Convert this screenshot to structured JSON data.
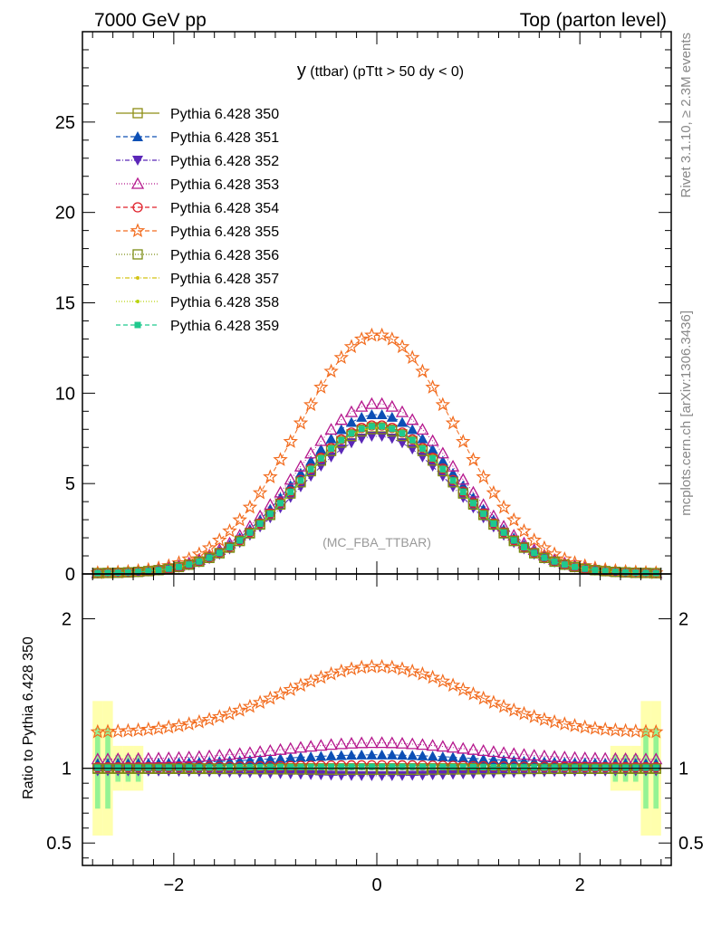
{
  "header": {
    "left": "7000 GeV pp",
    "right": "Top (parton level)"
  },
  "side_labels": {
    "rivet": "Rivet 3.1.10, ≥ 2.3M events",
    "mcplots": "mcplots.cern.ch [arXiv:1306.3436]"
  },
  "chart_data": {
    "type": "line",
    "title_main": "y",
    "title_rest": " (ttbar) (pTtt > 50 dy < 0)",
    "watermark": "(MC_FBA_TTBAR)",
    "ylabel_ratio": "Ratio to Pythia 6.428 350",
    "xlim": [
      -2.9,
      2.9
    ],
    "ylim": [
      0,
      30
    ],
    "ratio_ylim": [
      0.35,
      2.3
    ],
    "x_ticks": [
      -2,
      0,
      2
    ],
    "x_tick_labels": [
      "−2",
      "0",
      "2"
    ],
    "y_ticks": [
      0,
      5,
      10,
      15,
      20,
      25
    ],
    "y_tick_labels": [
      "0",
      "5",
      "10",
      "15",
      "20",
      "25"
    ],
    "ratio_ticks": [
      0.5,
      1,
      2
    ],
    "ratio_tick_labels": [
      "0.5",
      "1",
      "2"
    ],
    "shape": {
      "x_start": -2.75,
      "x_step": 0.1,
      "n_points": 56,
      "gauss_sigma": 0.78,
      "flat_tail": 0.03
    },
    "series": [
      {
        "name": "Pythia 6.428 350",
        "peak": 8.1,
        "ratio": 1.0,
        "color": "#8d8d14",
        "marker": "square-open",
        "dash": ""
      },
      {
        "name": "Pythia 6.428 351",
        "peak": 8.8,
        "ratio": 1.09,
        "color": "#0d4fb5",
        "marker": "triangle-up",
        "dash": "5,3"
      },
      {
        "name": "Pythia 6.428 352",
        "peak": 7.6,
        "ratio": 0.95,
        "color": "#5b27b8",
        "marker": "triangle-down",
        "dash": "5,2,1,2"
      },
      {
        "name": "Pythia 6.428 353",
        "peak": 9.4,
        "ratio": 1.17,
        "color": "#b5178d",
        "marker": "triangle-open",
        "dash": "1,2"
      },
      {
        "name": "Pythia 6.428 354",
        "peak": 8.2,
        "ratio": 1.02,
        "color": "#e0202a",
        "marker": "circle-open",
        "dash": "5,3"
      },
      {
        "name": "Pythia 6.428 355",
        "peak": 13.2,
        "ratio": 1.68,
        "color": "#f26b1d",
        "marker": "star-open",
        "dash": "5,3"
      },
      {
        "name": "Pythia 6.428 356",
        "peak": 8.0,
        "ratio": 0.99,
        "color": "#7c8d14",
        "marker": "square-open",
        "dash": "1,2"
      },
      {
        "name": "Pythia 6.428 357",
        "peak": 8.05,
        "ratio": 1.0,
        "color": "#d3c414",
        "marker": "dot",
        "dash": "5,2,1,2"
      },
      {
        "name": "Pythia 6.428 358",
        "peak": 8.1,
        "ratio": 1.0,
        "color": "#b9d40f",
        "marker": "dot",
        "dash": "1,2"
      },
      {
        "name": "Pythia 6.428 359",
        "peak": 8.15,
        "ratio": 1.01,
        "color": "#1ec98d",
        "marker": "square",
        "dash": "5,3"
      }
    ]
  }
}
